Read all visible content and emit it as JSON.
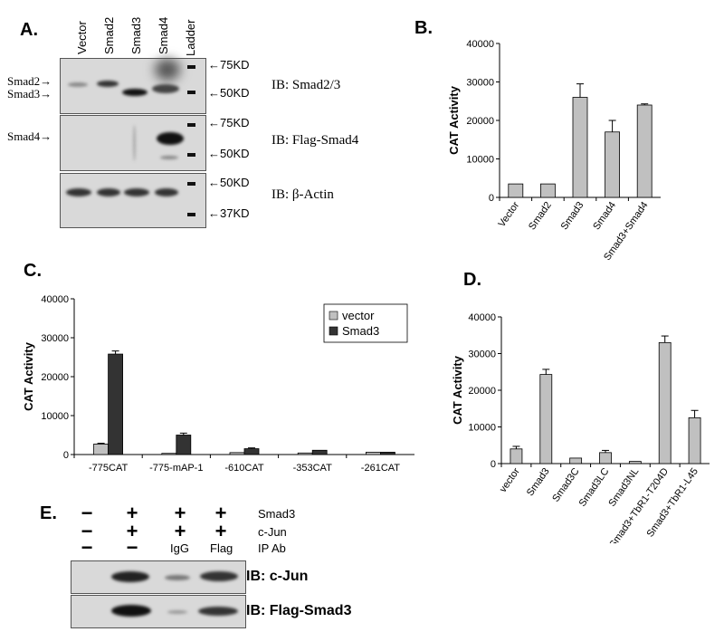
{
  "panel_a": {
    "label": "A.",
    "lanes": [
      "Vector",
      "Smad2",
      "Smad3",
      "Smad4",
      "Ladder"
    ],
    "blot1": {
      "ib": "IB: Smad2/3",
      "left_labels": [
        "Smad2",
        "Smad3"
      ],
      "markers": [
        "75KD",
        "50KD"
      ]
    },
    "blot2": {
      "ib": "IB: Flag-Smad4",
      "left_labels": [
        "Smad4"
      ],
      "markers": [
        "75KD",
        "50KD"
      ]
    },
    "blot3": {
      "ib": "IB: β-Actin",
      "markers": [
        "50KD",
        "37KD"
      ]
    }
  },
  "panel_b_label": "B.",
  "panel_c_label": "C.",
  "panel_d_label": "D.",
  "panel_e": {
    "label": "E.",
    "rows": [
      {
        "label": "Smad3",
        "cells": [
          "−",
          "+",
          "+",
          "+"
        ]
      },
      {
        "label": "c-Jun",
        "cells": [
          "−",
          "+",
          "+",
          "+"
        ]
      },
      {
        "label": "IP Ab",
        "cells": [
          "−",
          "−",
          "IgG",
          "Flag"
        ]
      }
    ],
    "ib1": "IB: c-Jun",
    "ib2": "IB: Flag-Smad3"
  },
  "chart_data": [
    {
      "id": "B",
      "type": "bar",
      "categories": [
        "Vector",
        "Smad2",
        "Smad3",
        "Smad4",
        "Smad3+Smad4"
      ],
      "series": [
        {
          "values": [
            3500,
            3500,
            26000,
            17000,
            24000
          ],
          "errors": [
            0,
            0,
            3500,
            3000,
            300
          ]
        }
      ],
      "ylabel": "CAT  Activity",
      "ylim": [
        0,
        40000
      ],
      "yticks": [
        0,
        10000,
        20000,
        30000,
        40000
      ],
      "colors": [
        "#c0c0c0"
      ]
    },
    {
      "id": "C",
      "type": "bar",
      "categories": [
        "-775CAT",
        "-775-mAP-1",
        "-610CAT",
        "-353CAT",
        "-261CAT"
      ],
      "series": [
        {
          "name": "vector",
          "values": [
            2700,
            300,
            500,
            400,
            600
          ],
          "errors": [
            200,
            0,
            0,
            0,
            0
          ]
        },
        {
          "name": "Smad3",
          "values": [
            25800,
            5000,
            1500,
            1100,
            600
          ],
          "errors": [
            800,
            500,
            200,
            0,
            0
          ]
        }
      ],
      "ylabel": "CAT Activity",
      "ylim": [
        0,
        40000
      ],
      "yticks": [
        0,
        10000,
        20000,
        30000,
        40000
      ],
      "legend": "top-right",
      "colors": [
        "#c0c0c0",
        "#333333"
      ]
    },
    {
      "id": "D",
      "type": "bar",
      "categories": [
        "vector",
        "Smad3",
        "Smad3C",
        "Smad3LC",
        "Smad3NL",
        "Smad3+TbR1-T204D",
        "Smad3+TbR1-L45"
      ],
      "series": [
        {
          "values": [
            4000,
            24300,
            1500,
            3000,
            600,
            33000,
            12500
          ],
          "errors": [
            700,
            1400,
            0,
            600,
            0,
            1800,
            2000
          ]
        }
      ],
      "ylabel": "CAT Activity",
      "ylim": [
        0,
        40000
      ],
      "yticks": [
        0,
        10000,
        20000,
        30000,
        40000
      ],
      "colors": [
        "#c0c0c0"
      ]
    }
  ]
}
